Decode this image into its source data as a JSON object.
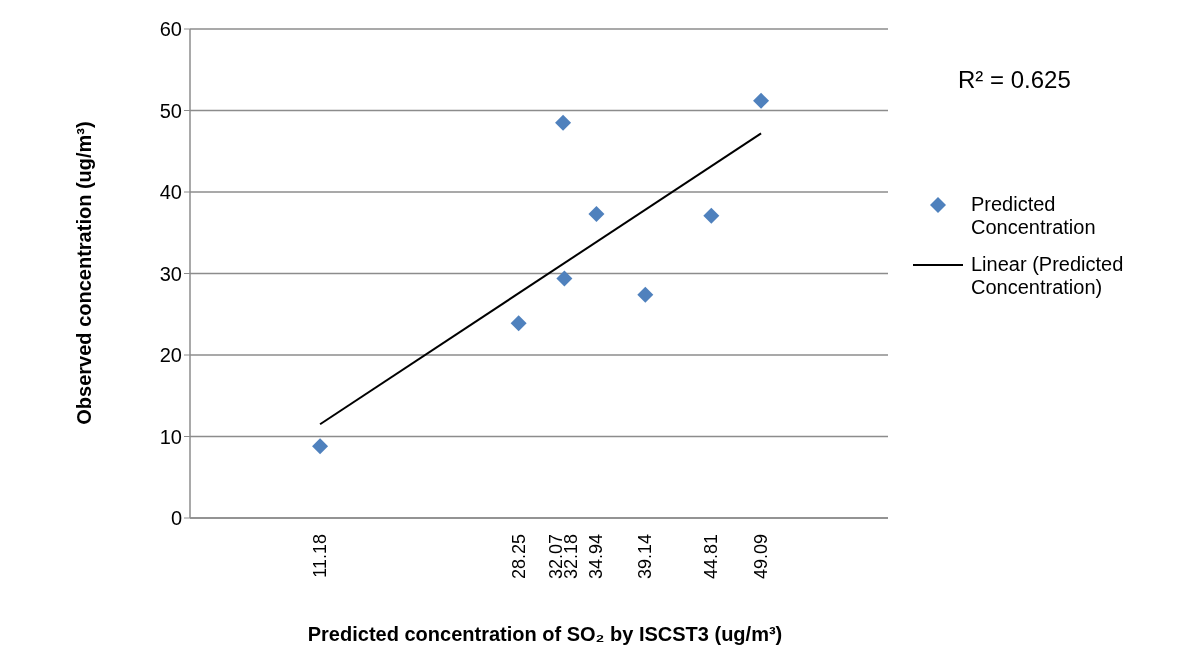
{
  "chart_data": {
    "type": "scatter",
    "xlabel": "Predicted  concentration of SO₂ by ISCST3 (ug/m³)",
    "ylabel": "Observed concentration (ug/m³)",
    "x": [
      11.18,
      28.25,
      32.07,
      32.18,
      34.94,
      39.14,
      44.81,
      49.09
    ],
    "series": [
      {
        "name": "Predicted Concentration",
        "color": "#4f81bd",
        "marker": "diamond",
        "values": [
          8.8,
          23.9,
          48.5,
          29.4,
          37.3,
          27.4,
          37.1,
          51.2
        ]
      },
      {
        "name": "Linear (Predicted Concentration)",
        "type": "line",
        "color": "#000000",
        "marker": "none",
        "x": [
          11.18,
          49.09
        ],
        "values": [
          11.5,
          47.2
        ]
      }
    ],
    "xlim": [
      0,
      60
    ],
    "xticks": [
      11.18,
      28.25,
      32.07,
      32.18,
      34.94,
      39.14,
      44.81,
      49.09
    ],
    "ylim": [
      0,
      60
    ],
    "yticks": [
      0,
      10,
      20,
      30,
      40,
      50,
      60
    ],
    "grid": "y",
    "legend": "right",
    "annotations": [
      "R² = 0.625"
    ]
  }
}
